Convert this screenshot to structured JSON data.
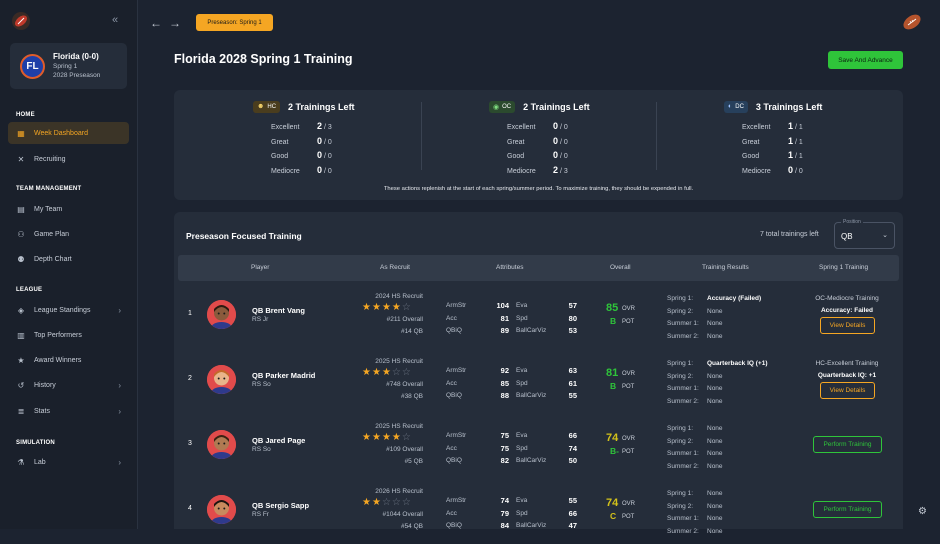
{
  "app": {
    "logo_icon": "football-icon",
    "collapse_icon": "double-chevron-left-icon"
  },
  "team": {
    "badge": "FL",
    "name": "Florida (0-0)",
    "line1": "Spring 1",
    "line2": "2028 Preseason",
    "colors": {
      "primary": "#1f3fa8",
      "accent": "#e05c2a"
    }
  },
  "sidebar": {
    "sections": [
      {
        "title": "HOME",
        "items": [
          {
            "label": "Week Dashboard",
            "icon": "dashboard-icon",
            "active": true
          },
          {
            "label": "Recruiting",
            "icon": "crossed-tools-icon"
          }
        ]
      },
      {
        "title": "TEAM MANAGEMENT",
        "items": [
          {
            "label": "My Team",
            "icon": "calendar-icon"
          },
          {
            "label": "Game Plan",
            "icon": "playbook-icon"
          },
          {
            "label": "Depth Chart",
            "icon": "people-icon"
          }
        ]
      },
      {
        "title": "LEAGUE",
        "items": [
          {
            "label": "League Standings",
            "icon": "layers-icon",
            "chevron": true
          },
          {
            "label": "Top Performers",
            "icon": "bars-icon"
          },
          {
            "label": "Award Winners",
            "icon": "star-icon"
          },
          {
            "label": "History",
            "icon": "history-icon",
            "chevron": true
          },
          {
            "label": "Stats",
            "icon": "database-icon",
            "chevron": true
          }
        ]
      },
      {
        "title": "SIMULATION",
        "items": [
          {
            "label": "Lab",
            "icon": "flask-icon",
            "chevron": true
          }
        ]
      }
    ]
  },
  "topbar": {
    "back_icon": "arrow-left-icon",
    "forward_icon": "arrow-right-icon",
    "season_pill": "Preseason: Spring 1"
  },
  "page": {
    "title": "Florida 2028 Spring 1 Training",
    "save_button": "Save And Advance"
  },
  "coaches": [
    {
      "tag": "HC",
      "icon": "smiley-icon",
      "color": "#4a3d1e",
      "trainings_left": "2 Trainings Left",
      "rows": [
        {
          "label": "Excellent",
          "num": "2",
          "den": "/ 3"
        },
        {
          "label": "Great",
          "num": "0",
          "den": "/ 0"
        },
        {
          "label": "Good",
          "num": "0",
          "den": "/ 0"
        },
        {
          "label": "Mediocre",
          "num": "0",
          "den": "/ 0"
        }
      ]
    },
    {
      "tag": "OC",
      "icon": "football-small-icon",
      "color": "#2b4a2e",
      "trainings_left": "2 Trainings Left",
      "rows": [
        {
          "label": "Excellent",
          "num": "0",
          "den": "/ 0"
        },
        {
          "label": "Great",
          "num": "0",
          "den": "/ 0"
        },
        {
          "label": "Good",
          "num": "0",
          "den": "/ 0"
        },
        {
          "label": "Mediocre",
          "num": "2",
          "den": "/ 3"
        }
      ]
    },
    {
      "tag": "DC",
      "icon": "shield-icon",
      "color": "#27405c",
      "trainings_left": "3 Trainings Left",
      "rows": [
        {
          "label": "Excellent",
          "num": "1",
          "den": "/ 1"
        },
        {
          "label": "Great",
          "num": "1",
          "den": "/ 1"
        },
        {
          "label": "Good",
          "num": "1",
          "den": "/ 1"
        },
        {
          "label": "Mediocre",
          "num": "0",
          "den": "/ 0"
        }
      ]
    }
  ],
  "panel_note": "These actions replenish at the start of each spring/summer period. To maximize training, they should be expended in full.",
  "training": {
    "title": "Preseason Focused Training",
    "count": "7 total trainings left",
    "position_label": "Position",
    "position_value": "QB",
    "headers": [
      "Player",
      "As Recruit",
      "Attributes",
      "Overall",
      "Training Results",
      "Spring 1 Training"
    ],
    "players": [
      {
        "rank": "1",
        "name": "QB Brent Vang",
        "year": "RS Jr",
        "recruit": "2024 HS Recruit",
        "stars": 4,
        "overall_rank": "#211 Overall",
        "pos_rank": "#14 QB",
        "attrs": [
          [
            "ArmStr",
            "104",
            "Eva",
            "57"
          ],
          [
            "Acc",
            "81",
            "Spd",
            "80"
          ],
          [
            "QBiQ",
            "89",
            "BallCarViz",
            "53"
          ]
        ],
        "ovr": "85",
        "ovr_label": "OVR",
        "pot": "B",
        "pot_label": "POT",
        "ovr_color": "#2fc43a",
        "pot_color": "#2fc43a",
        "results": [
          [
            "Spring 1:",
            "Accuracy (Failed)"
          ],
          [
            "Spring 2:",
            "None"
          ],
          [
            "Summer 1:",
            "None"
          ],
          [
            "Summer 2:",
            "None"
          ]
        ],
        "training_lines": [
          "OC-Mediocre Training",
          "Accuracy: Failed"
        ],
        "action": "View Details",
        "action_type": "view",
        "skin": "#8a5a3c",
        "hair": "#2a1a10"
      },
      {
        "rank": "2",
        "name": "QB Parker Madrid",
        "year": "RS So",
        "recruit": "2025 HS Recruit",
        "stars": 3,
        "overall_rank": "#748 Overall",
        "pos_rank": "#38 QB",
        "attrs": [
          [
            "ArmStr",
            "92",
            "Eva",
            "63"
          ],
          [
            "Acc",
            "85",
            "Spd",
            "61"
          ],
          [
            "QBiQ",
            "88",
            "BallCarViz",
            "55"
          ]
        ],
        "ovr": "81",
        "ovr_label": "OVR",
        "pot": "B",
        "pot_label": "POT",
        "ovr_color": "#2fc43a",
        "pot_color": "#2fc43a",
        "results": [
          [
            "Spring 1:",
            "Quarterback IQ (+1)"
          ],
          [
            "Spring 2:",
            "None"
          ],
          [
            "Summer 1:",
            "None"
          ],
          [
            "Summer 2:",
            "None"
          ]
        ],
        "training_lines": [
          "HC-Excellent Training",
          "Quarterback IQ: +1"
        ],
        "action": "View Details",
        "action_type": "view",
        "skin": "#e8b48a",
        "hair": "#c46a2a"
      },
      {
        "rank": "3",
        "name": "QB Jared Page",
        "year": "RS So",
        "recruit": "2025 HS Recruit",
        "stars": 4,
        "overall_rank": "#109 Overall",
        "pos_rank": "#5 QB",
        "attrs": [
          [
            "ArmStr",
            "75",
            "Eva",
            "66"
          ],
          [
            "Acc",
            "75",
            "Spd",
            "74"
          ],
          [
            "QBiQ",
            "82",
            "BallCarViz",
            "50"
          ]
        ],
        "ovr": "74",
        "ovr_label": "OVR",
        "pot": "B-",
        "pot_label": "POT",
        "ovr_color": "#d4c21a",
        "pot_color": "#2fc43a",
        "results": [
          [
            "Spring 1:",
            "None"
          ],
          [
            "Spring 2:",
            "None"
          ],
          [
            "Summer 1:",
            "None"
          ],
          [
            "Summer 2:",
            "None"
          ]
        ],
        "training_lines": [],
        "action": "Perform Training",
        "action_type": "perform",
        "skin": "#b07a52",
        "hair": "#3a2212"
      },
      {
        "rank": "4",
        "name": "QB Sergio Sapp",
        "year": "RS Fr",
        "recruit": "2026 HS Recruit",
        "stars": 2,
        "overall_rank": "#1044 Overall",
        "pos_rank": "#54 QB",
        "attrs": [
          [
            "ArmStr",
            "74",
            "Eva",
            "55"
          ],
          [
            "Acc",
            "79",
            "Spd",
            "66"
          ],
          [
            "QBiQ",
            "84",
            "BallCarViz",
            "47"
          ]
        ],
        "ovr": "74",
        "ovr_label": "OVR",
        "pot": "C",
        "pot_label": "POT",
        "ovr_color": "#d4c21a",
        "pot_color": "#d4c21a",
        "results": [
          [
            "Spring 1:",
            "None"
          ],
          [
            "Spring 2:",
            "None"
          ],
          [
            "Summer 1:",
            "None"
          ],
          [
            "Summer 2:",
            "None"
          ]
        ],
        "training_lines": [],
        "action": "Perform Training",
        "action_type": "perform",
        "skin": "#c88a5e",
        "hair": "#1e1410"
      }
    ]
  },
  "footer": {
    "settings_icon": "gear-icon"
  }
}
